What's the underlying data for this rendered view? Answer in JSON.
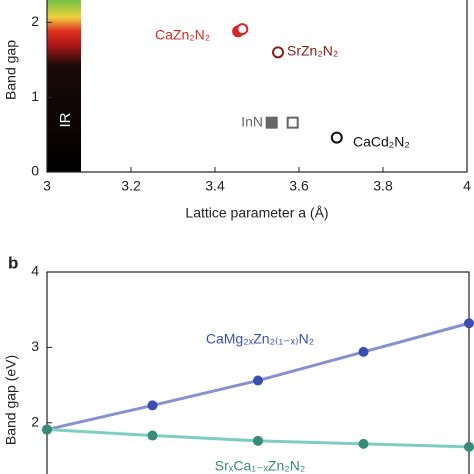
{
  "chart_data": [
    {
      "type": "scatter",
      "panel_label": null,
      "ylabel": "Band gap",
      "xlabel": "Lattice parameter a (Å)",
      "band_label": "IR",
      "xlim": [
        3,
        4
      ],
      "xticks": [
        3,
        {
          "value": 3.2,
          "label": "3.2"
        },
        {
          "value": 3.4,
          "label": "3.4"
        },
        {
          "value": 3.6,
          "label": "3.6"
        },
        {
          "value": 3.8,
          "label": "3.8"
        },
        4
      ],
      "ylim": [
        0,
        2.3
      ],
      "yticks": [
        0,
        1,
        2
      ],
      "series": [
        {
          "name": "CaZn₂N₂",
          "color": "#d62728",
          "marker": "circle",
          "filled": [
            true,
            false
          ],
          "x": [
            3.455,
            3.465
          ],
          "values": [
            1.88,
            1.91
          ]
        },
        {
          "name": "SrZn₂N₂",
          "color": "#8b1a1a",
          "marker": "circle",
          "filled": [
            false
          ],
          "x": [
            3.55
          ],
          "values": [
            1.6
          ]
        },
        {
          "name": "InN",
          "color": "#666666",
          "marker": "square",
          "filled": [
            true,
            false
          ],
          "x": [
            3.535,
            3.585
          ],
          "values": [
            0.66,
            0.66
          ]
        },
        {
          "name": "CaCd₂N₂",
          "color": "#111111",
          "marker": "circle",
          "filled": [
            false
          ],
          "x": [
            3.69
          ],
          "values": [
            0.46
          ]
        }
      ]
    },
    {
      "type": "line",
      "panel_label": "b",
      "ylabel": "Band gap (eV)",
      "xlim": [
        0,
        1
      ],
      "ylim": [
        1.32,
        4
      ],
      "yticks": [
        2,
        3,
        4
      ],
      "x": [
        0,
        0.25,
        0.5,
        0.75,
        1
      ],
      "series": [
        {
          "name": "CaMg₂ₓZn₂₍₁₋ₓ₎N₂",
          "color": "#3a4fb0",
          "line_color": "#8a8fd0",
          "values": [
            1.91,
            2.23,
            2.56,
            2.94,
            3.32
          ]
        },
        {
          "name": "SrₓCa₁₋ₓZn₂N₂",
          "color": "#3a8a78",
          "line_color": "#7fcfc0",
          "values": [
            1.91,
            1.83,
            1.76,
            1.72,
            1.68
          ]
        }
      ]
    }
  ]
}
